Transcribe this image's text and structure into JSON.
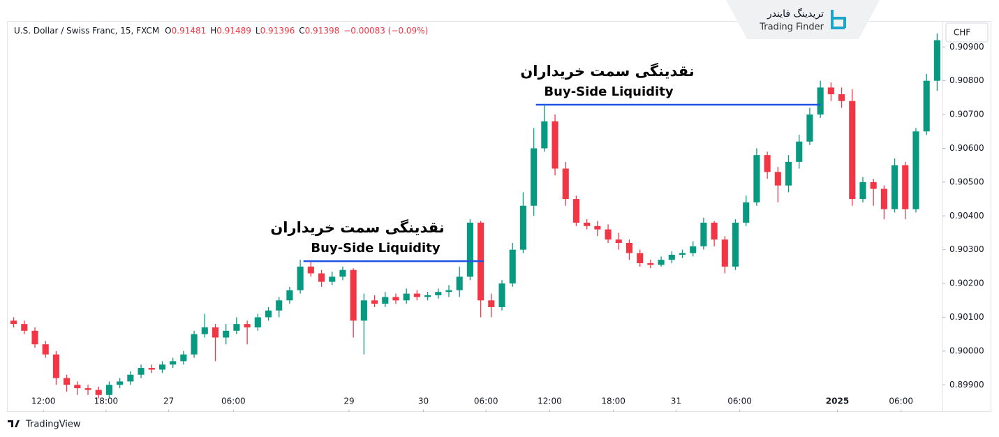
{
  "branding": {
    "logo_fa": "تریدینگ فایندر",
    "logo_en": "Trading Finder",
    "footer": "TradingView"
  },
  "chart_data": {
    "type": "candlestick",
    "symbol": "U.S. Dollar / Swiss Franc, 15, FXCM",
    "ohlc_legend": [
      {
        "label": "O",
        "value": "0.91481"
      },
      {
        "label": "H",
        "value": "0.91489"
      },
      {
        "label": "L",
        "value": "0.91396"
      },
      {
        "label": "C",
        "value": "0.91398"
      }
    ],
    "change": "−0.00083 (−0.09%)",
    "currency": "CHF",
    "up_color": "#089981",
    "down_color": "#f23645",
    "xlim": [
      0,
      88
    ],
    "ylim": [
      0.8982,
      0.90977
    ],
    "xticks": [
      {
        "value": 3.3,
        "label": "12:00"
      },
      {
        "value": 9.2,
        "label": "18:00"
      },
      {
        "value": 15.1,
        "label": "27"
      },
      {
        "value": 21.2,
        "label": "06:00"
      },
      {
        "value": 32.1,
        "label": "29"
      },
      {
        "value": 39.1,
        "label": "30"
      },
      {
        "value": 45,
        "label": "06:00"
      },
      {
        "value": 51,
        "label": "12:00"
      },
      {
        "value": 57,
        "label": "18:00"
      },
      {
        "value": 62.9,
        "label": "31"
      },
      {
        "value": 68.9,
        "label": "06:00"
      },
      {
        "value": 78.1,
        "label": "2025"
      },
      {
        "value": 84.1,
        "label": "06:00"
      }
    ],
    "yticks": [
      {
        "value": 0.899,
        "label": "0.89900"
      },
      {
        "value": 0.9,
        "label": "0.90000"
      },
      {
        "value": 0.901,
        "label": "0.90100"
      },
      {
        "value": 0.902,
        "label": "0.90200"
      },
      {
        "value": 0.903,
        "label": "0.90300"
      },
      {
        "value": 0.904,
        "label": "0.90400"
      },
      {
        "value": 0.905,
        "label": "0.90500"
      },
      {
        "value": 0.906,
        "label": "0.90600"
      },
      {
        "value": 0.907,
        "label": "0.90700"
      },
      {
        "value": 0.908,
        "label": "0.90800"
      },
      {
        "value": 0.909,
        "label": "0.90900"
      }
    ],
    "candles": {
      "open": [
        0.9009,
        0.9008,
        0.9006,
        0.9002,
        0.8999,
        0.8992,
        0.899,
        0.8989,
        0.89885,
        0.8987,
        0.899,
        0.8991,
        0.8993,
        0.8995,
        0.89945,
        0.8996,
        0.8997,
        0.8999,
        0.9005,
        0.9007,
        0.9004,
        0.9006,
        0.9008,
        0.9007,
        0.901,
        0.9012,
        0.9015,
        0.9018,
        0.9025,
        0.9023,
        0.90205,
        0.9022,
        0.9024,
        0.9009,
        0.9015,
        0.9014,
        0.9016,
        0.9015,
        0.9017,
        0.9016,
        0.90165,
        0.90175,
        0.9018,
        0.9022,
        0.9038,
        0.9015,
        0.9013,
        0.902,
        0.903,
        0.9043,
        0.906,
        0.9068,
        0.9054,
        0.9045,
        0.9038,
        0.9037,
        0.9036,
        0.9033,
        0.9032,
        0.9029,
        0.9026,
        0.90255,
        0.9027,
        0.90285,
        0.9029,
        0.9031,
        0.9038,
        0.9033,
        0.9025,
        0.9038,
        0.9044,
        0.9058,
        0.9053,
        0.9049,
        0.9056,
        0.9062,
        0.907,
        0.9078,
        0.9076,
        0.9074,
        0.9045,
        0.905,
        0.9048,
        0.9042,
        0.9055,
        0.9042,
        0.9065,
        0.908
      ],
      "high": [
        0.901,
        0.9009,
        0.9007,
        0.9003,
        0.9,
        0.8993,
        0.8991,
        0.899,
        0.89895,
        0.8991,
        0.8992,
        0.8994,
        0.8996,
        0.8996,
        0.8997,
        0.8998,
        0.9,
        0.9006,
        0.9011,
        0.9008,
        0.9008,
        0.901,
        0.9009,
        0.9011,
        0.9013,
        0.9016,
        0.9019,
        0.9027,
        0.90265,
        0.9024,
        0.90235,
        0.9025,
        0.90245,
        0.9017,
        0.90165,
        0.90175,
        0.9017,
        0.90185,
        0.9018,
        0.90175,
        0.90185,
        0.90195,
        0.9025,
        0.9039,
        0.90385,
        0.9017,
        0.9021,
        0.9032,
        0.9047,
        0.9066,
        0.9073,
        0.907,
        0.9056,
        0.9046,
        0.9039,
        0.90385,
        0.90375,
        0.9035,
        0.9033,
        0.903,
        0.9027,
        0.9028,
        0.90295,
        0.903,
        0.90325,
        0.90395,
        0.90385,
        0.9034,
        0.9039,
        0.9046,
        0.906,
        0.9059,
        0.90545,
        0.9058,
        0.9064,
        0.9072,
        0.908,
        0.90795,
        0.9078,
        0.90775,
        0.90515,
        0.9051,
        0.9049,
        0.9057,
        0.9056,
        0.9066,
        0.9082,
        0.9094
      ],
      "low": [
        0.9007,
        0.9005,
        0.9001,
        0.8998,
        0.899,
        0.8988,
        0.8987,
        0.8987,
        0.8986,
        0.8986,
        0.8989,
        0.899,
        0.8992,
        0.89935,
        0.89935,
        0.8995,
        0.8996,
        0.8998,
        0.9004,
        0.8997,
        0.9002,
        0.9005,
        0.9002,
        0.9006,
        0.9009,
        0.901,
        0.9014,
        0.9017,
        0.9022,
        0.9019,
        0.90195,
        0.9021,
        0.9004,
        0.8999,
        0.9013,
        0.9013,
        0.9014,
        0.9014,
        0.9015,
        0.9015,
        0.90155,
        0.9016,
        0.9016,
        0.9021,
        0.901,
        0.901,
        0.9012,
        0.9019,
        0.9029,
        0.904,
        0.9059,
        0.9052,
        0.9043,
        0.9037,
        0.9036,
        0.9034,
        0.9032,
        0.903,
        0.9027,
        0.9025,
        0.90245,
        0.9025,
        0.9026,
        0.90275,
        0.9028,
        0.903,
        0.9031,
        0.9023,
        0.9024,
        0.9037,
        0.9043,
        0.9051,
        0.9044,
        0.9047,
        0.9054,
        0.9061,
        0.9069,
        0.9074,
        0.9072,
        0.9043,
        0.9044,
        0.9043,
        0.9039,
        0.9041,
        0.9039,
        0.9041,
        0.9064,
        0.9077
      ],
      "close": [
        0.9008,
        0.9006,
        0.9002,
        0.8999,
        0.8992,
        0.899,
        0.8989,
        0.89885,
        0.8987,
        0.899,
        0.8991,
        0.8993,
        0.8995,
        0.89945,
        0.8996,
        0.8997,
        0.8999,
        0.9005,
        0.9007,
        0.9004,
        0.9006,
        0.9008,
        0.9007,
        0.901,
        0.9012,
        0.9015,
        0.9018,
        0.9025,
        0.9023,
        0.90205,
        0.9022,
        0.9024,
        0.9009,
        0.9015,
        0.9014,
        0.9016,
        0.9015,
        0.9017,
        0.9016,
        0.90165,
        0.90175,
        0.9018,
        0.9022,
        0.9038,
        0.9015,
        0.9013,
        0.902,
        0.903,
        0.9043,
        0.906,
        0.9068,
        0.9054,
        0.9045,
        0.9038,
        0.9037,
        0.9036,
        0.9033,
        0.9032,
        0.9029,
        0.9026,
        0.90255,
        0.9027,
        0.90285,
        0.9029,
        0.9031,
        0.9038,
        0.9033,
        0.9025,
        0.9038,
        0.9044,
        0.9058,
        0.9053,
        0.9049,
        0.9056,
        0.9062,
        0.907,
        0.9078,
        0.9076,
        0.9074,
        0.9045,
        0.905,
        0.9048,
        0.9042,
        0.9055,
        0.9042,
        0.9065,
        0.908,
        0.9092
      ]
    },
    "annotations": [
      {
        "title_fa": "نقدینگی سمت خریداران",
        "title_en": "Buy-Side Liquidity",
        "x": [
          27.8,
          44.8
        ],
        "y": 0.90266,
        "color": "#1e53e5"
      },
      {
        "title_fa": "نقدینگی سمت خریداران",
        "title_en": "Buy-Side Liquidity",
        "x": [
          49.7,
          76.5
        ],
        "y": 0.90729,
        "color": "#1e53e5"
      }
    ]
  }
}
